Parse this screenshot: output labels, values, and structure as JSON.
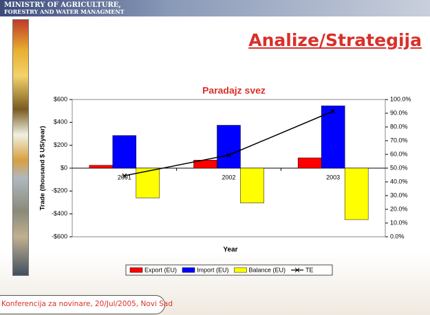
{
  "header": {
    "line1": "MINISTRY OF AGRICULTURE,",
    "line2": "FORESTRY AND WATER MANAGMENT"
  },
  "slide_title": "Analize/Strategija",
  "footer": "Konferencija za novinare, 20/Jul/2005, Novi Sad",
  "chart_data": {
    "type": "bar",
    "title": "Paradajz svez",
    "x_label": "Year",
    "y_label": "Trade (thousand $ US/year)",
    "categories": [
      "2001",
      "2002",
      "2003"
    ],
    "series": [
      {
        "name": "Export (EU)",
        "color": "#ff0000",
        "values": [
          25,
          70,
          90
        ]
      },
      {
        "name": "Import (EU)",
        "color": "#0000ff",
        "values": [
          285,
          375,
          545
        ]
      },
      {
        "name": "Balance (EU)",
        "color": "#ffff00",
        "values": [
          -260,
          -305,
          -450
        ]
      },
      {
        "name": "TE",
        "color": "#000000",
        "type": "line",
        "axis": "y2",
        "values": [
          44.5,
          59.5,
          91.5
        ]
      }
    ],
    "ylim": [
      -600,
      600
    ],
    "yticks": [
      {
        "value": -600,
        "label": "-$600"
      },
      {
        "value": -400,
        "label": "-$400"
      },
      {
        "value": -200,
        "label": "-$200"
      },
      {
        "value": 0,
        "label": "$0"
      },
      {
        "value": 200,
        "label": "$200"
      },
      {
        "value": 400,
        "label": "$400"
      },
      {
        "value": 600,
        "label": "$600"
      }
    ],
    "y2lim": [
      0,
      100
    ],
    "y2ticks": [
      {
        "value": 0,
        "label": "0.0%"
      },
      {
        "value": 10,
        "label": "10.0%"
      },
      {
        "value": 20,
        "label": "20.0%"
      },
      {
        "value": 30,
        "label": "30.0%"
      },
      {
        "value": 40,
        "label": "40.0%"
      },
      {
        "value": 50,
        "label": "50.0%"
      },
      {
        "value": 60,
        "label": "60.0%"
      },
      {
        "value": 70,
        "label": "70.0%"
      },
      {
        "value": 80,
        "label": "80.0%"
      },
      {
        "value": 90,
        "label": "90.0%"
      },
      {
        "value": 100,
        "label": "100.0%"
      }
    ],
    "legend": "bottom"
  }
}
